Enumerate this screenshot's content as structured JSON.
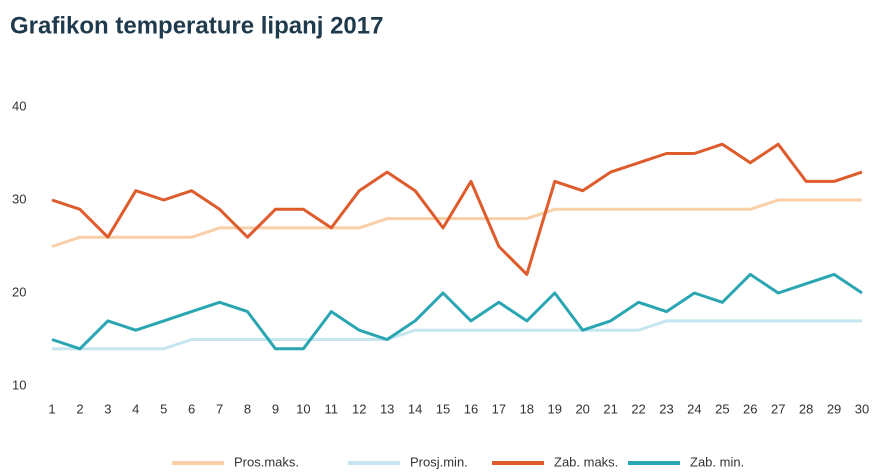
{
  "chart_data": {
    "type": "line",
    "title": "Grafikon temperature lipanj 2017",
    "x": [
      1,
      2,
      3,
      4,
      5,
      6,
      7,
      8,
      9,
      10,
      11,
      12,
      13,
      14,
      15,
      16,
      17,
      18,
      19,
      20,
      21,
      22,
      23,
      24,
      25,
      26,
      27,
      28,
      29,
      30
    ],
    "xlim": [
      1,
      30
    ],
    "ylim": [
      10,
      40
    ],
    "yticks": [
      10,
      20,
      30,
      40
    ],
    "grid": false,
    "legend": "bottom",
    "series": [
      {
        "name": "Pros.maks.",
        "color": "#f8cfa6",
        "values": [
          25,
          26,
          26,
          26,
          26,
          26,
          27,
          27,
          27,
          27,
          27,
          27,
          28,
          28,
          28,
          28,
          28,
          28,
          29,
          29,
          29,
          29,
          29,
          29,
          29,
          29,
          30,
          30,
          30,
          30
        ]
      },
      {
        "name": "Prosj.min.",
        "color": "#c5e6ef",
        "values": [
          14,
          14,
          14,
          14,
          14,
          15,
          15,
          15,
          15,
          15,
          15,
          15,
          15,
          16,
          16,
          16,
          16,
          16,
          16,
          16,
          16,
          16,
          17,
          17,
          17,
          17,
          17,
          17,
          17,
          17
        ]
      },
      {
        "name": "Zab. maks.",
        "color": "#de5b2c",
        "values": [
          30,
          29,
          26,
          31,
          30,
          31,
          29,
          26,
          29,
          29,
          27,
          31,
          33,
          31,
          27,
          32,
          25,
          22,
          32,
          31,
          33,
          34,
          35,
          35,
          36,
          34,
          36,
          32,
          32,
          33
        ]
      },
      {
        "name": "Zab. min.",
        "color": "#2aa6b3",
        "values": [
          15,
          14,
          17,
          16,
          17,
          18,
          19,
          18,
          14,
          14,
          18,
          16,
          15,
          17,
          20,
          17,
          19,
          17,
          20,
          16,
          17,
          19,
          18,
          20,
          19,
          22,
          20,
          21,
          22,
          20
        ]
      }
    ]
  }
}
